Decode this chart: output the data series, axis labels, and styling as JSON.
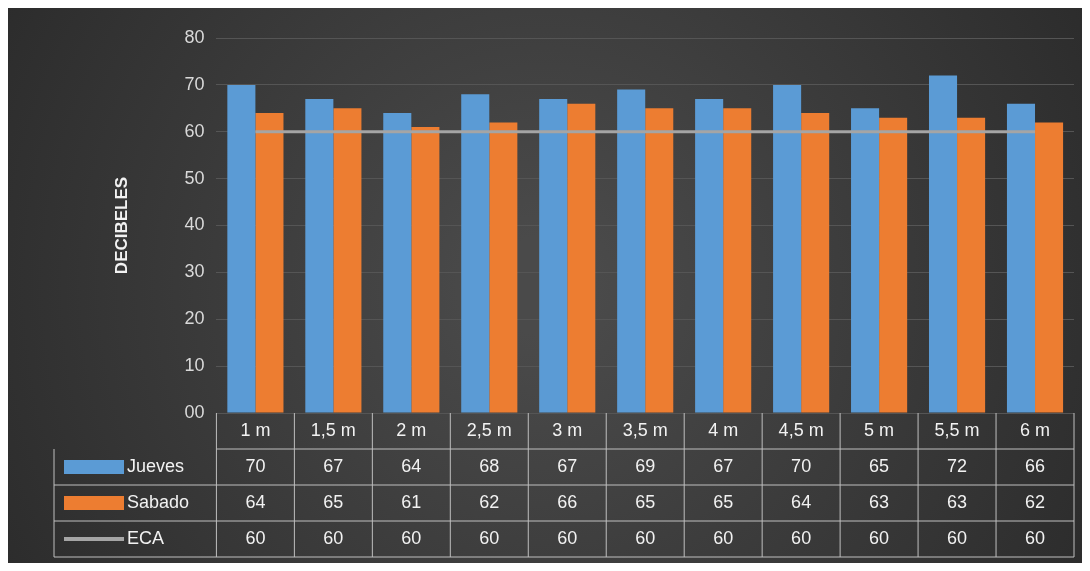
{
  "chart_data": {
    "type": "bar",
    "ylabel": "DECIBELES",
    "categories": [
      "1 m",
      "1,5 m",
      "2 m",
      "2,5 m",
      "3 m",
      "3,5 m",
      "4 m",
      "4,5 m",
      "5 m",
      "5,5 m",
      "6 m"
    ],
    "series": [
      {
        "name": "Jueves",
        "color": "#5b9bd5",
        "values": [
          70,
          67,
          64,
          68,
          67,
          69,
          67,
          70,
          65,
          72,
          66
        ]
      },
      {
        "name": "Sabado",
        "color": "#ed7d31",
        "values": [
          64,
          65,
          61,
          62,
          66,
          65,
          65,
          64,
          63,
          63,
          62
        ]
      },
      {
        "name": "ECA",
        "type": "line",
        "color": "#a5a5a5",
        "values": [
          60,
          60,
          60,
          60,
          60,
          60,
          60,
          60,
          60,
          60,
          60
        ]
      }
    ],
    "ylim": [
      0,
      80
    ],
    "yticks": [
      {
        "value": 0,
        "label": "00"
      },
      10,
      20,
      30,
      40,
      50,
      60,
      70,
      80
    ],
    "grid": "y",
    "legend": "bottom",
    "data_labels": true,
    "marker": "none"
  }
}
